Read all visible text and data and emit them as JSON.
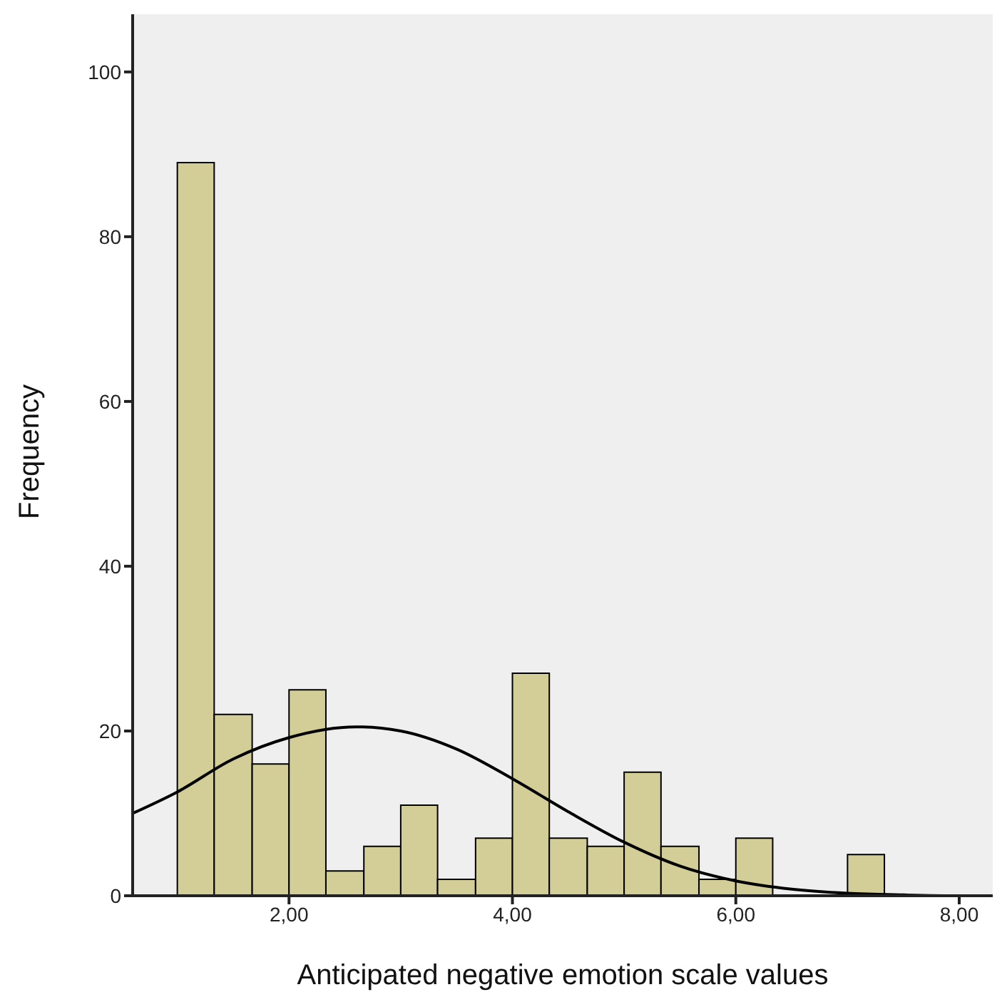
{
  "chart_data": {
    "type": "histogram",
    "xlabel": "Anticipated negative emotion scale values",
    "ylabel": "Frequency",
    "bins": [
      1,
      1.33,
      1.67,
      2,
      2.33,
      2.67,
      3,
      3.33,
      3.67,
      4,
      4.33,
      4.67,
      5,
      5.33,
      5.67,
      6,
      6.33,
      7,
      7.33
    ],
    "values": [
      89,
      22,
      16,
      25,
      3,
      6,
      11,
      2,
      7,
      27,
      7,
      6,
      15,
      6,
      2,
      7,
      0,
      5
    ],
    "color": "#d3ce97",
    "series": [
      {
        "type": "line",
        "color": "#000000",
        "x": [
          0.6,
          1,
          1.5,
          2,
          2.6,
          3,
          3.5,
          4,
          4.5,
          5,
          5.5,
          6,
          6.5,
          7,
          7.5,
          8,
          8.3
        ],
        "values": [
          10,
          12.6,
          16.6,
          19.2,
          20.5,
          20,
          17.8,
          14.2,
          10.2,
          6.5,
          3.6,
          1.8,
          0.8,
          0.3,
          0.1,
          0,
          0
        ]
      }
    ],
    "xlim": [
      0.6,
      8.3
    ],
    "xticks": [
      {
        "value": 2,
        "label": "2,00"
      },
      {
        "value": 4,
        "label": "4,00"
      },
      {
        "value": 6,
        "label": "6,00"
      },
      {
        "value": 8,
        "label": "8,00"
      }
    ],
    "ylim": [
      0,
      107
    ],
    "yticks": [
      0,
      20,
      40,
      60,
      80,
      100
    ],
    "marker": "none"
  }
}
